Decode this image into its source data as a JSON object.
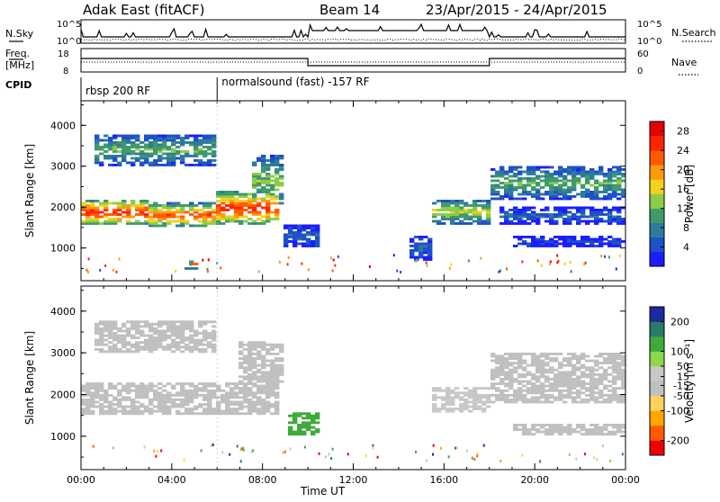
{
  "header": {
    "title": "Adak East (fitACF)",
    "beam": "Beam 14",
    "date_range": "23/Apr/2015 - 24/Apr/2015"
  },
  "params": {
    "nsky_label": "N.Sky",
    "nsearch_label": "N.Search",
    "noise_ticks": [
      "10^5",
      "10^0"
    ],
    "freq_label_1": "Freq.",
    "freq_label_2": "[MHz]",
    "freq_ticks": [
      18,
      8
    ],
    "nave_label": "Nave",
    "nave_ticks": [
      60,
      0
    ],
    "cpid_label": "CPID",
    "cpid_segments": [
      {
        "label": "rbsp 200 RF",
        "start_h": 0,
        "end_h": 6
      },
      {
        "label": "normalsound (fast) -157 RF",
        "start_h": 6,
        "end_h": 24
      }
    ]
  },
  "colors": {
    "power_scale": [
      "#1c1cff",
      "#1e50c8",
      "#2f7a9c",
      "#3f9a6a",
      "#8ccc4a",
      "#f2d21a",
      "#ff9a10",
      "#ff5a00",
      "#ff2400",
      "#e60000"
    ],
    "velocity_scale": [
      "#f00000",
      "#ff5a00",
      "#ffa500",
      "#ffd25a",
      "#c0c0c0",
      "#c8c8c8",
      "#8cd84a",
      "#3faa3a",
      "#2a7a6a",
      "#1c2aa0"
    ],
    "ground_scatter": "#c0c0c0"
  },
  "chart_data": [
    {
      "type": "heatmap",
      "name": "power",
      "ylabel": "Slant Range [km]",
      "xlabel": "Time UT",
      "ylim": [
        200,
        4600
      ],
      "xlim_hours": [
        0,
        24
      ],
      "y_ticks": [
        1000,
        2000,
        3000,
        4000
      ],
      "x_ticks": [
        "00:00",
        "04:00",
        "08:00",
        "12:00",
        "16:00",
        "20:00",
        "00:00"
      ],
      "colorbar": {
        "label": "Power [dB]",
        "ticks": [
          4,
          8,
          12,
          16,
          20,
          24,
          28
        ],
        "range": [
          0,
          30
        ]
      },
      "regions": [
        {
          "t0": 0.0,
          "t1": 3.0,
          "r0": 1550,
          "r1": 2200,
          "peak": 28
        },
        {
          "t0": 3.0,
          "t1": 6.0,
          "r0": 1500,
          "r1": 2100,
          "peak": 26
        },
        {
          "t0": 6.0,
          "t1": 8.8,
          "r0": 1550,
          "r1": 2400,
          "peak": 28
        },
        {
          "t0": 7.5,
          "t1": 9.0,
          "r0": 2000,
          "r1": 3300,
          "peak": 16
        },
        {
          "t0": 0.5,
          "t1": 6.0,
          "r0": 3000,
          "r1": 3800,
          "peak": 14
        },
        {
          "t0": 4.5,
          "t1": 5.2,
          "r0": 500,
          "r1": 700,
          "peak": 26
        },
        {
          "t0": 9.0,
          "t1": 10.5,
          "r0": 1000,
          "r1": 1600,
          "peak": 8
        },
        {
          "t0": 14.5,
          "t1": 15.5,
          "r0": 700,
          "r1": 1300,
          "peak": 8
        },
        {
          "t0": 15.5,
          "t1": 18.0,
          "r0": 1600,
          "r1": 2200,
          "peak": 18
        },
        {
          "t0": 18.0,
          "t1": 24.0,
          "r0": 2200,
          "r1": 3000,
          "peak": 14
        },
        {
          "t0": 18.5,
          "t1": 24.0,
          "r0": 1600,
          "r1": 2000,
          "peak": 8
        },
        {
          "t0": 19.0,
          "t1": 24.0,
          "r0": 1000,
          "r1": 1300,
          "peak": 6
        }
      ]
    },
    {
      "type": "heatmap",
      "name": "velocity",
      "ylabel": "Slant Range [km]",
      "xlabel": "Time UT",
      "ylim": [
        200,
        4600
      ],
      "xlim_hours": [
        0,
        24
      ],
      "y_ticks": [
        1000,
        2000,
        3000,
        4000
      ],
      "x_ticks": [
        "00:00",
        "04:00",
        "08:00",
        "12:00",
        "16:00",
        "20:00",
        "00:00"
      ],
      "colorbar": {
        "label": "Velocity [m s⁻¹]",
        "ticks": [
          200,
          100,
          50,
          15,
          -15,
          -50,
          -100,
          -200
        ],
        "range": [
          -250,
          250
        ]
      },
      "regions": [
        {
          "t0": 0.0,
          "t1": 8.8,
          "r0": 1500,
          "r1": 2300,
          "v": 0
        },
        {
          "t0": 0.5,
          "t1": 6.0,
          "r0": 3000,
          "r1": 3800,
          "v": 0
        },
        {
          "t0": 7.0,
          "t1": 9.0,
          "r0": 2200,
          "r1": 3300,
          "v": 0
        },
        {
          "t0": 9.2,
          "t1": 10.5,
          "r0": 1000,
          "r1": 1600,
          "v": 150
        },
        {
          "t0": 15.5,
          "t1": 18.0,
          "r0": 1600,
          "r1": 2200,
          "v": 40
        },
        {
          "t0": 18.0,
          "t1": 24.0,
          "r0": 1800,
          "r1": 3000,
          "v": 0
        },
        {
          "t0": 19.0,
          "t1": 24.0,
          "r0": 1000,
          "r1": 1300,
          "v": 0
        }
      ]
    }
  ]
}
